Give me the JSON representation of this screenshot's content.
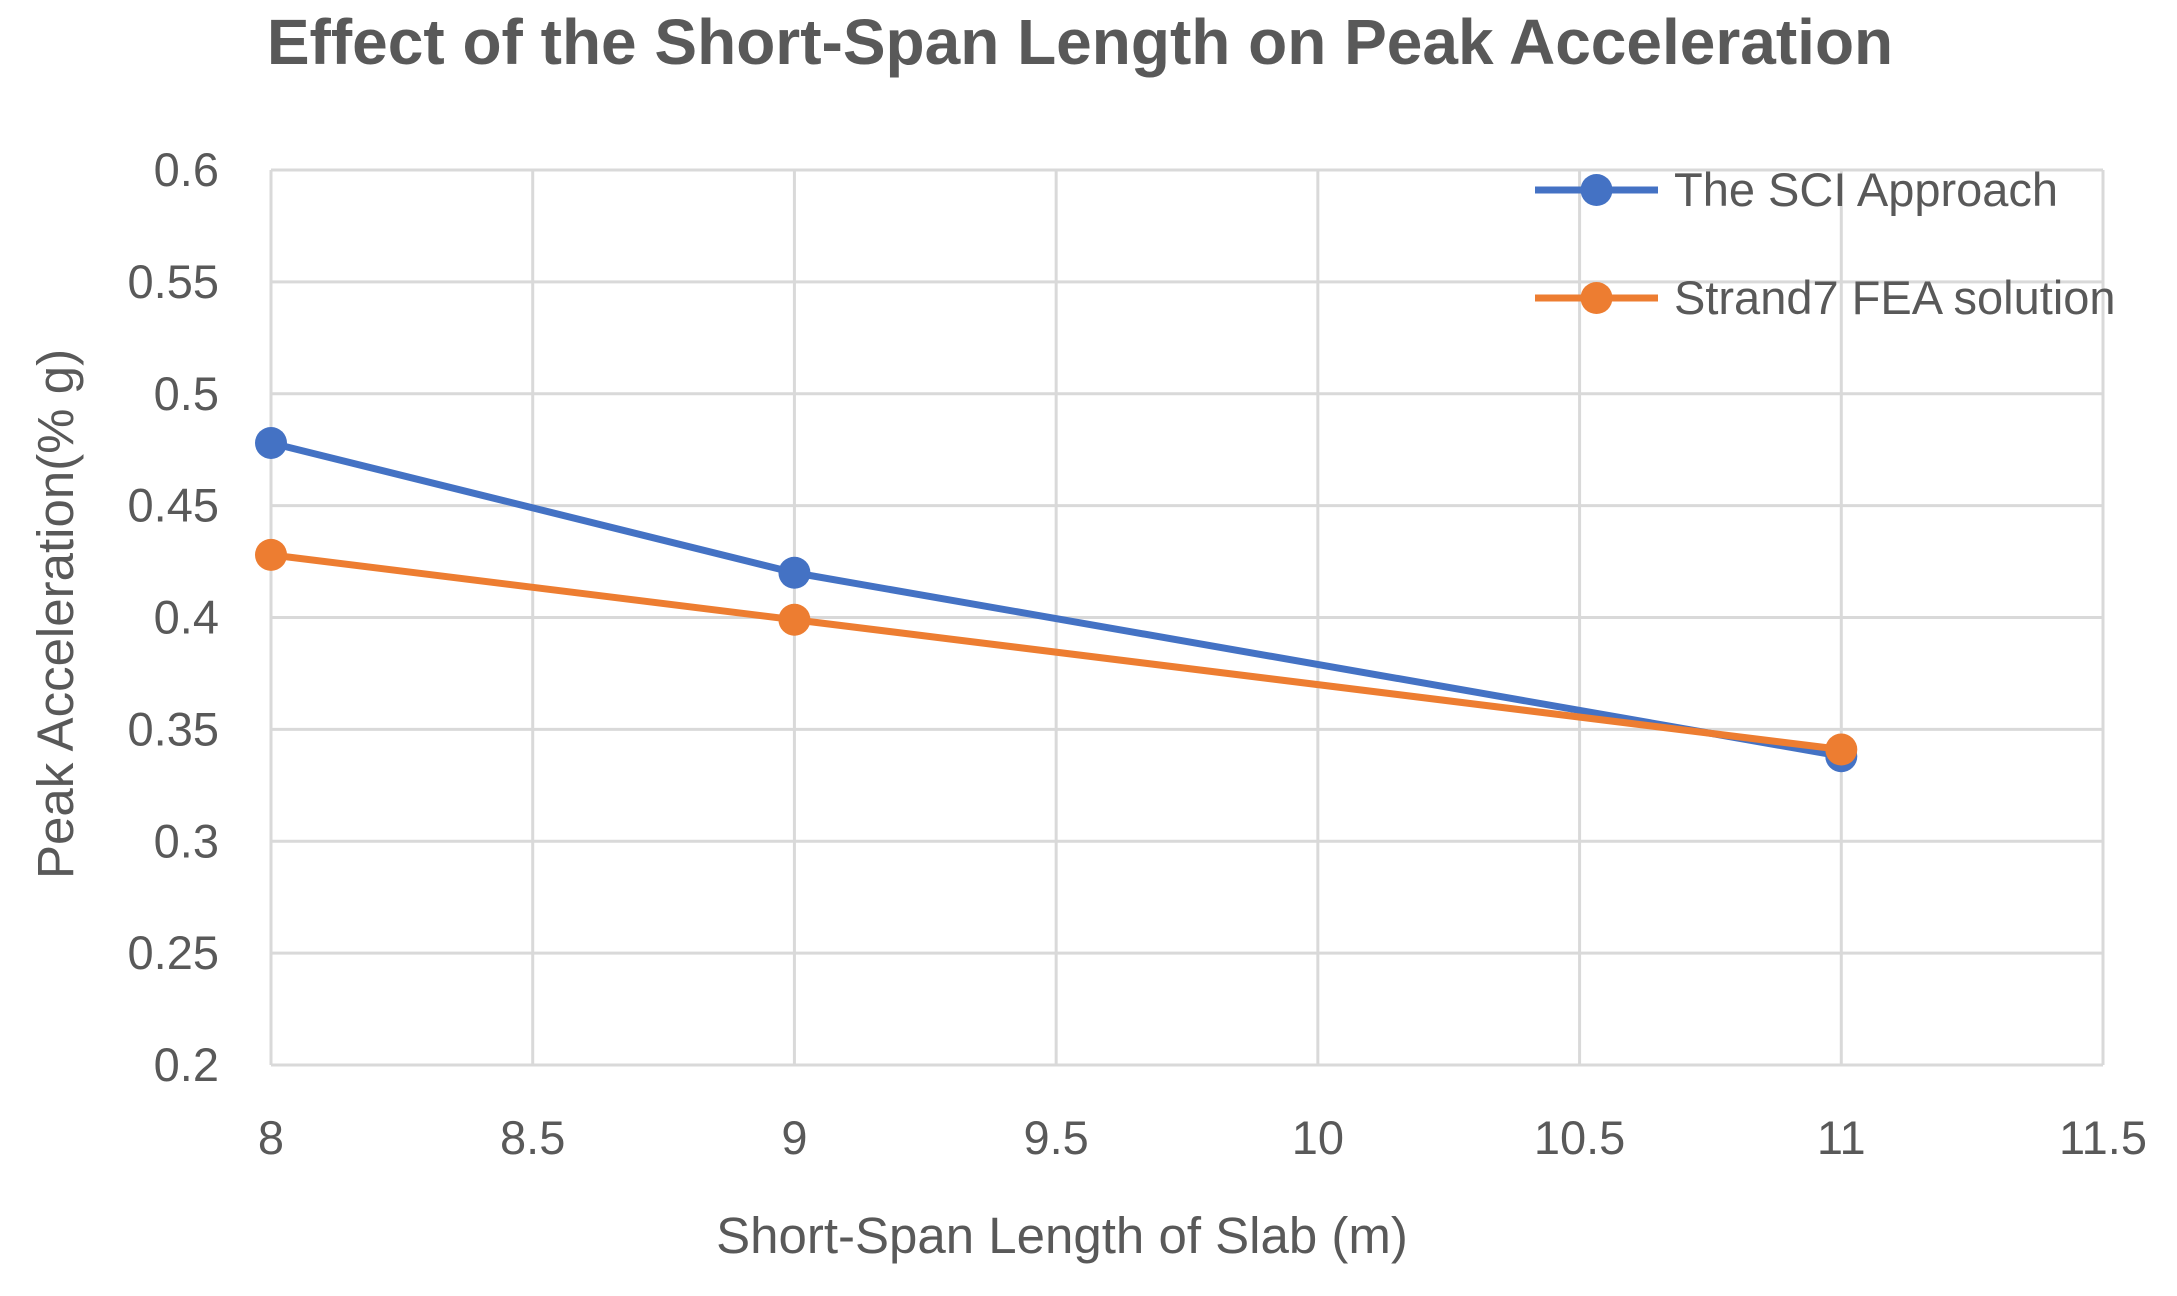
{
  "chart_data": {
    "type": "line",
    "title": "Effect of the Short-Span Length on Peak Acceleration",
    "xlabel": "Short-Span Length of Slab (m)",
    "ylabel": "Peak Acceleration(% g)",
    "xlim": [
      8,
      11.5
    ],
    "ylim": [
      0.2,
      0.6
    ],
    "x_ticks": [
      "8",
      "8.5",
      "9",
      "9.5",
      "10",
      "10.5",
      "11",
      "11.5"
    ],
    "y_ticks": [
      "0.2",
      "0.25",
      "0.3",
      "0.35",
      "0.4",
      "0.45",
      "0.5",
      "0.55",
      "0.6"
    ],
    "grid": true,
    "legend_position": "top-right",
    "series": [
      {
        "name": "The SCI Approach",
        "color": "#4472C4",
        "x": [
          8,
          9,
          11
        ],
        "values": [
          0.478,
          0.42,
          0.338
        ]
      },
      {
        "name": "Strand7 FEA solution",
        "color": "#ED7D31",
        "x": [
          8,
          9,
          11
        ],
        "values": [
          0.428,
          0.399,
          0.341
        ]
      }
    ]
  }
}
